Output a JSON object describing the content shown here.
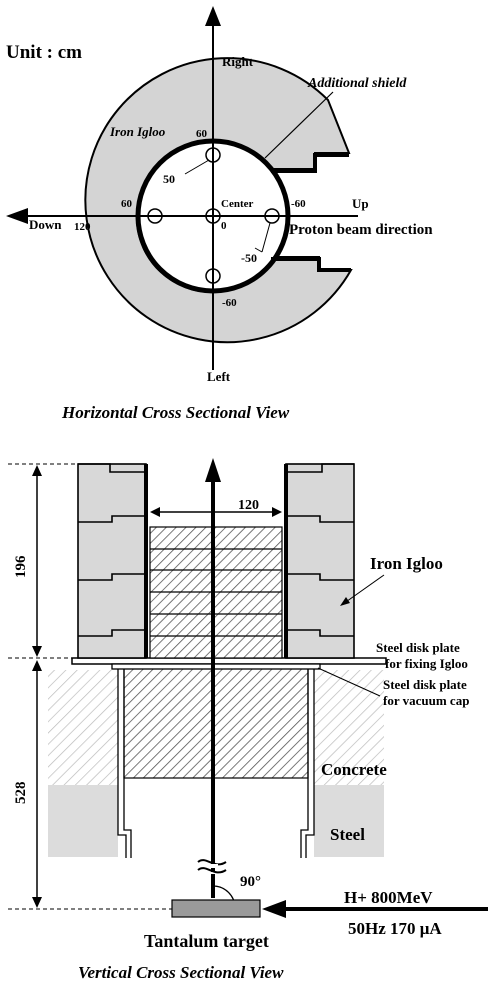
{
  "horizontal": {
    "unit": "Unit : cm",
    "axis_right": "Right",
    "axis_left": "Left",
    "axis_up": "Up",
    "axis_down": "Down",
    "iron_igloo": "Iron Igloo",
    "additional_shield": "Additional shield",
    "center": "Center",
    "zero": "0",
    "tick_60_top": "60",
    "tick_60_left": "60",
    "tick_neg60_right": "-60",
    "tick_neg60_bottom": "-60",
    "tick_120": "120",
    "radius_50": "50",
    "radius_neg50": "-50",
    "beam_direction": "Proton beam direction",
    "caption": "Horizontal Cross Sectional View"
  },
  "vertical": {
    "width_label": "120",
    "height_196": "196",
    "height_528": "528",
    "iron_igloo": "Iron Igloo",
    "steel_plate_1_line1": "Steel disk plate",
    "steel_plate_1_line2": "for fixing Igloo",
    "steel_plate_2_line1": "Steel disk plate",
    "steel_plate_2_line2": "for vacuum cap",
    "concrete": "Concrete",
    "steel": "Steel",
    "angle": "90°",
    "beam_line1": "H+  800MeV",
    "beam_line2": "50Hz 170 μA",
    "target": "Tantalum target",
    "caption": "Vertical Cross Sectional View"
  }
}
